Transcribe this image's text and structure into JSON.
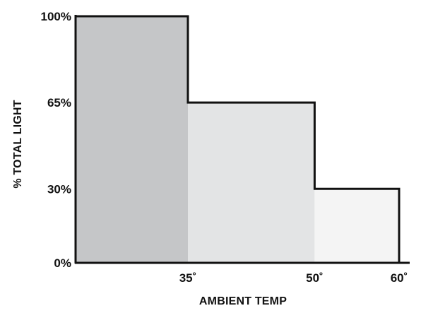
{
  "chart_data": {
    "type": "area",
    "title": "",
    "xlabel": "AMBIENT TEMP",
    "ylabel": "% TOTAL LIGHT",
    "x_tick_labels": [
      "35˚",
      "50˚",
      "60˚"
    ],
    "y_tick_labels": [
      "100%",
      "65%",
      "30%",
      "0%"
    ],
    "y_ticks": [
      100,
      65,
      30,
      0
    ],
    "x_ticks": [
      35,
      50,
      60
    ],
    "xlim": [
      18,
      62
    ],
    "ylim": [
      0,
      100
    ],
    "series": [
      {
        "steps": [
          {
            "x_start": 18,
            "x_end": 35,
            "value": 100
          },
          {
            "x_start": 35,
            "x_end": 50,
            "value": 65
          },
          {
            "x_start": 50,
            "x_end": 60,
            "value": 30
          }
        ]
      }
    ],
    "step_fill_colors": [
      "#c5c6c8",
      "#e3e4e5",
      "#f4f4f4"
    ],
    "outline_color": "#111111",
    "grid": false,
    "legend": "none"
  }
}
